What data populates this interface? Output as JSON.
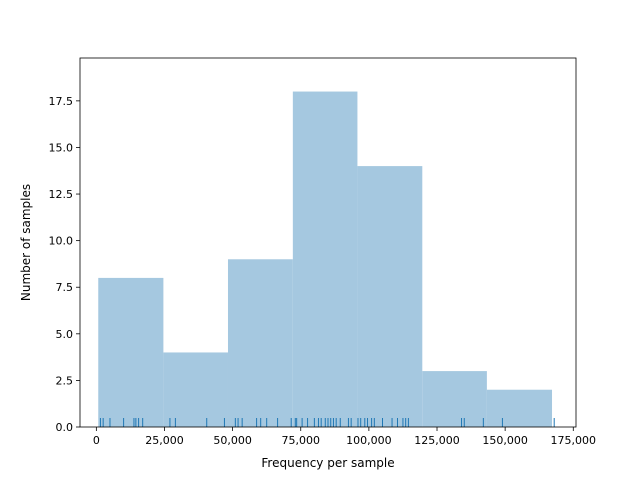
{
  "chart_data": {
    "type": "histogram",
    "title": "",
    "xlabel": "Frequency per sample",
    "ylabel": "Number of samples",
    "xlim": [
      -6000,
      176000
    ],
    "ylim": [
      0,
      19.8
    ],
    "bar_color": "#a5c8e0",
    "rug_color": "#1f77b4",
    "bins": [
      {
        "start": 700,
        "end": 24600,
        "count": 8
      },
      {
        "start": 24600,
        "end": 48300,
        "count": 4
      },
      {
        "start": 48300,
        "end": 72100,
        "count": 9
      },
      {
        "start": 72100,
        "end": 95800,
        "count": 18
      },
      {
        "start": 95800,
        "end": 119600,
        "count": 14
      },
      {
        "start": 119600,
        "end": 143300,
        "count": 3
      },
      {
        "start": 143300,
        "end": 167200,
        "count": 2
      }
    ],
    "rug_values": [
      1500,
      2500,
      5000,
      10000,
      13800,
      14500,
      15500,
      17000,
      27000,
      29000,
      40500,
      47000,
      51000,
      52000,
      53500,
      58800,
      60300,
      62500,
      66500,
      71500,
      73000,
      73500,
      75500,
      77500,
      80000,
      81500,
      82500,
      84000,
      85000,
      86000,
      87000,
      88000,
      89500,
      92500,
      93500,
      96000,
      97000,
      98500,
      99500,
      101000,
      102000,
      105000,
      108500,
      110500,
      112500,
      113500,
      114500,
      134000,
      135000,
      142000,
      149000,
      168000
    ],
    "xticks": [
      0,
      25000,
      50000,
      75000,
      100000,
      125000,
      150000,
      175000
    ],
    "xtick_labels": [
      "0",
      "25,000",
      "50,000",
      "75,000",
      "100,000",
      "125,000",
      "150,000",
      "175,000"
    ],
    "yticks": [
      0,
      2.5,
      5,
      7.5,
      10,
      12.5,
      15,
      17.5
    ],
    "ytick_labels": [
      "0.0",
      "2.5",
      "5.0",
      "7.5",
      "10.0",
      "12.5",
      "15.0",
      "17.5"
    ]
  }
}
